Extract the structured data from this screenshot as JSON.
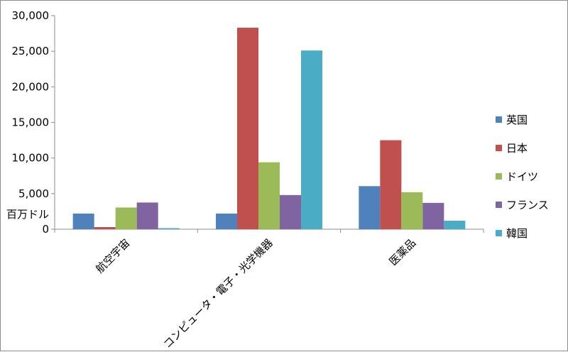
{
  "chart_data": {
    "type": "bar",
    "unit_label": "百万ドル",
    "categories": [
      "航空宇宙",
      "コンピュータ・電子・光学機器",
      "医薬品"
    ],
    "series": [
      {
        "name": "英国",
        "color": "#4f81bd",
        "values": [
          2200,
          2200,
          6050
        ]
      },
      {
        "name": "日本",
        "color": "#c0504d",
        "values": [
          300,
          28300,
          12500
        ]
      },
      {
        "name": "ドイツ",
        "color": "#9bbb59",
        "values": [
          3050,
          9400,
          5200
        ]
      },
      {
        "name": "フランス",
        "color": "#8064a2",
        "values": [
          3750,
          4800,
          3700
        ]
      },
      {
        "name": "韓国",
        "color": "#4bacc6",
        "values": [
          150,
          25100,
          1200
        ]
      }
    ],
    "ylim": [
      0,
      30000
    ],
    "yticks": [
      "0",
      "5,000",
      "10,000",
      "15,000",
      "20,000",
      "25,000",
      "30,000"
    ],
    "grid": false,
    "legend_position": "right"
  }
}
